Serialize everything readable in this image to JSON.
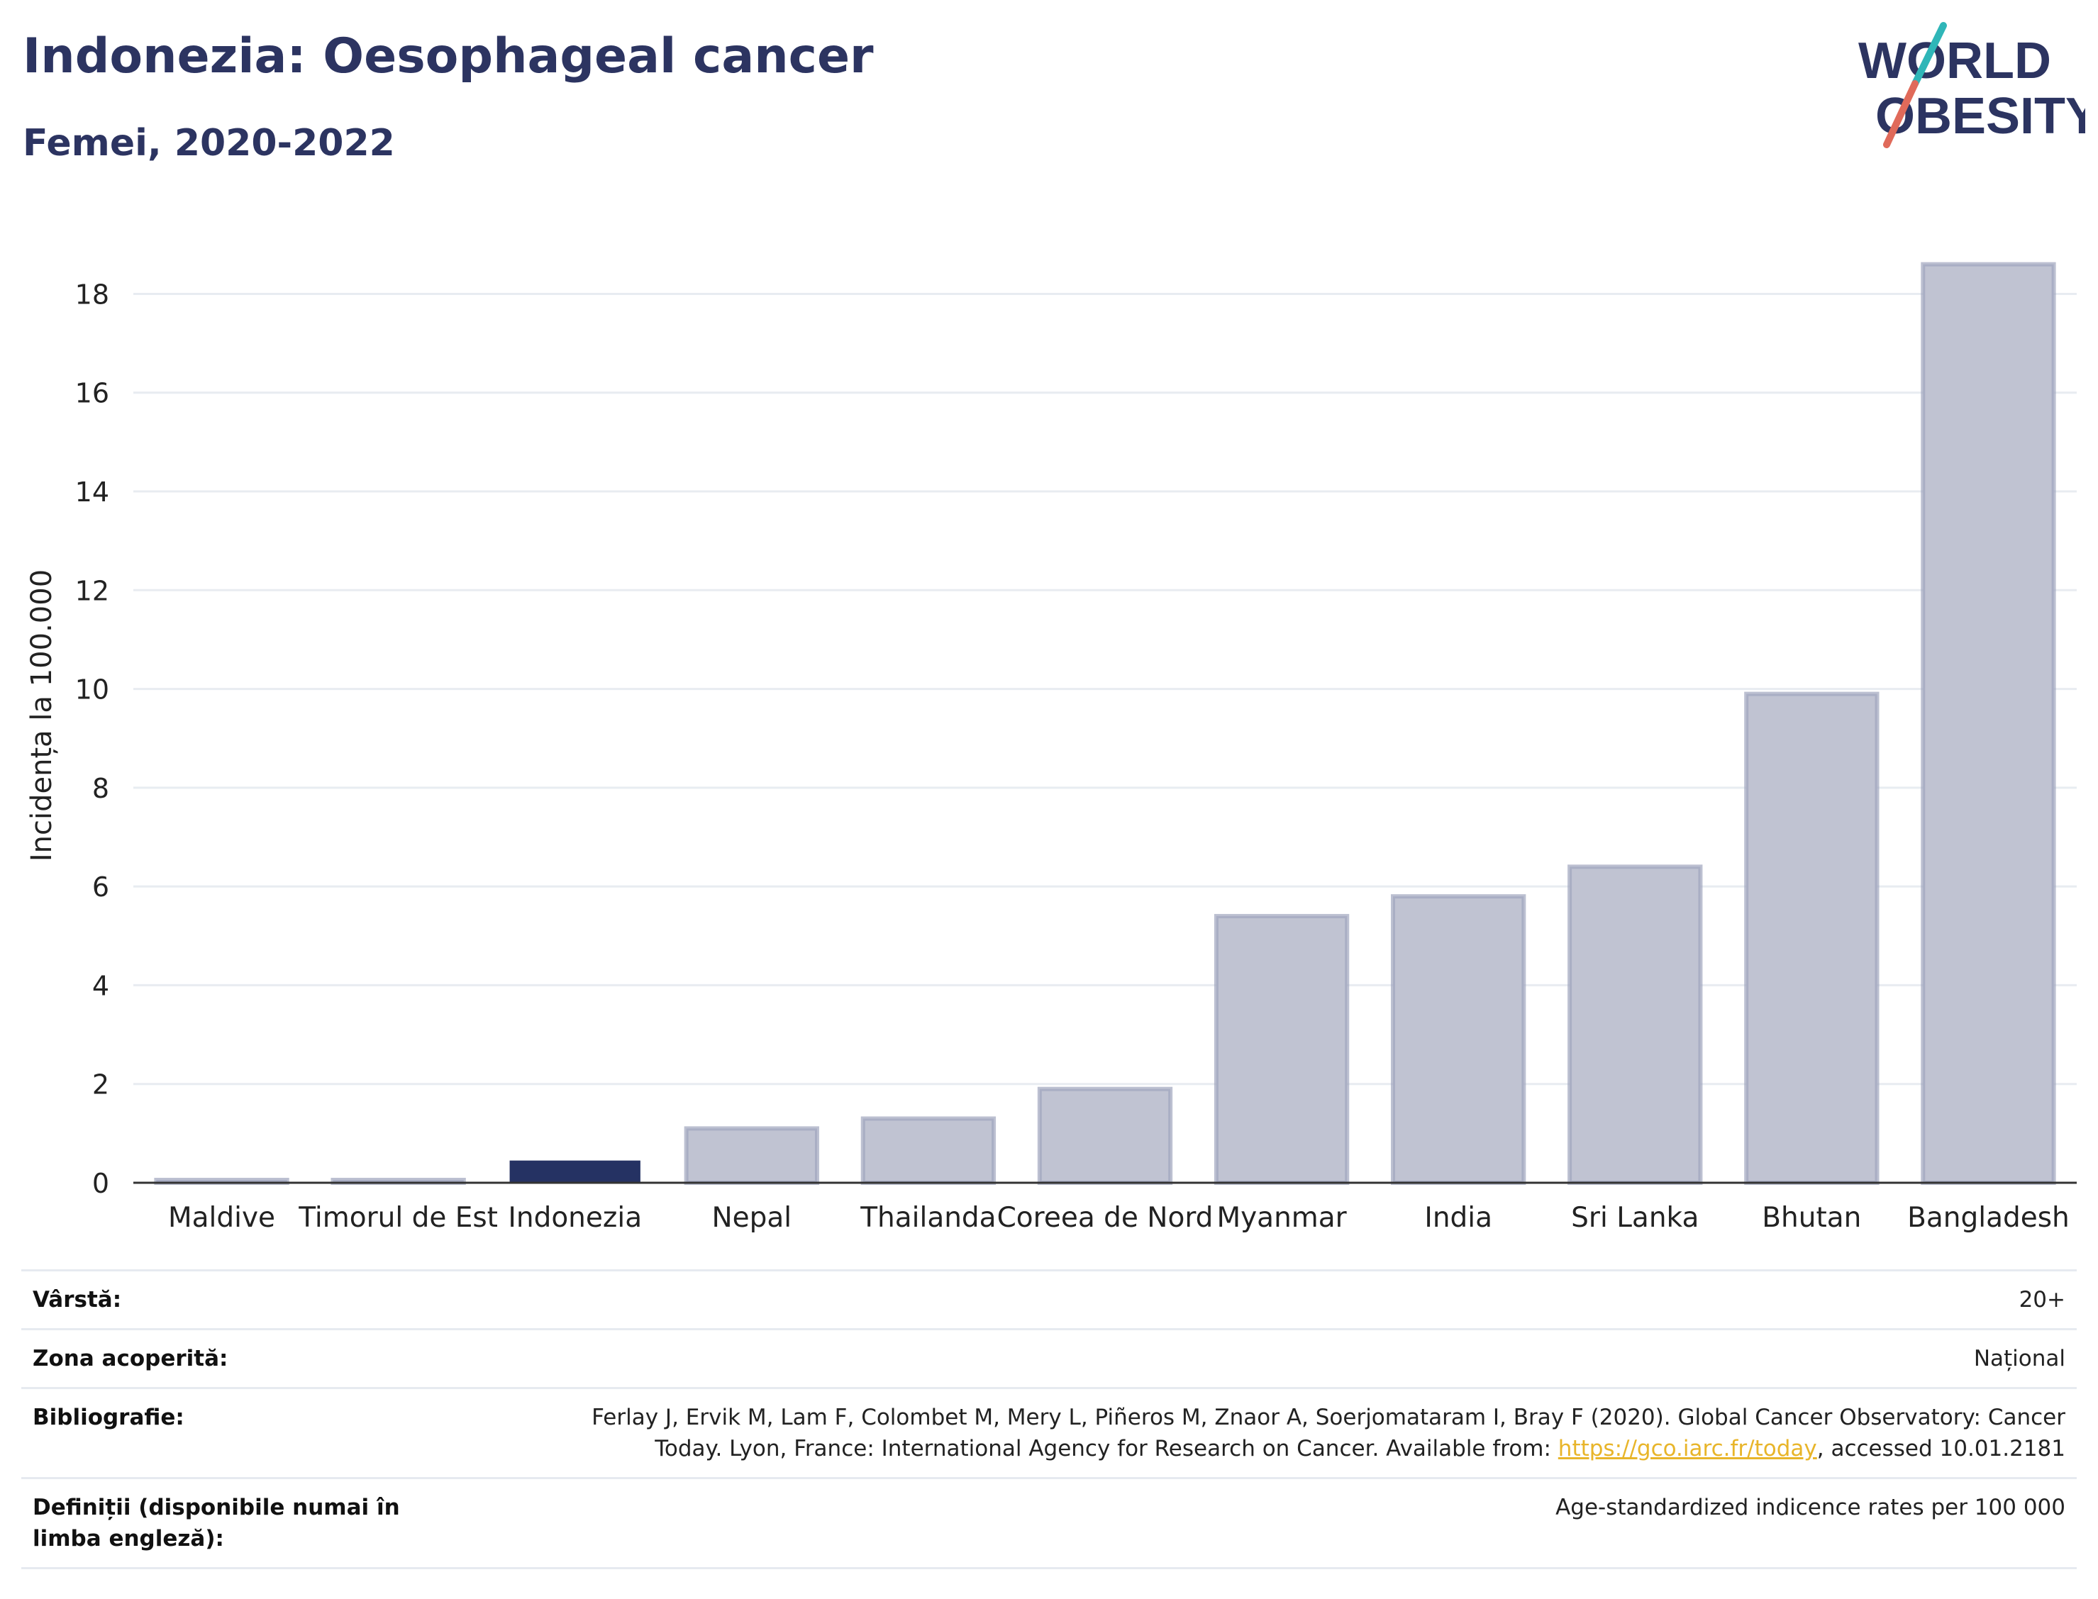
{
  "header": {
    "title": "Indonezia: Oesophageal cancer",
    "subtitle": "Femei, 2020-2022"
  },
  "logo": {
    "line1": "WORLD",
    "line2": "OBESITY",
    "icon": "world-obesity-logo"
  },
  "chart_data": {
    "type": "bar",
    "categories": [
      "Maldive",
      "Timorul de Est",
      "Indonezia",
      "Nepal",
      "Thailanda",
      "Coreea de Nord",
      "Myanmar",
      "India",
      "Sri Lanka",
      "Bhutan",
      "Bangladesh"
    ],
    "values": [
      0.05,
      0.05,
      0.45,
      1.1,
      1.3,
      1.9,
      5.4,
      5.8,
      6.4,
      9.9,
      18.6
    ],
    "highlight": "Indonezia",
    "ylabel": "Incidența la 100.000",
    "ylim": [
      0,
      19.5
    ],
    "yticks": [
      0,
      2,
      4,
      6,
      8,
      10,
      12,
      14,
      16,
      18
    ],
    "grid": true,
    "colors": {
      "bar": "#c0c3d2",
      "bar_edge": "#9fa5bd",
      "highlight": "#253263",
      "grid": "#e8ecf1",
      "axis": "#333333"
    }
  },
  "info": {
    "age_label": "Vârstă:",
    "age_value": "20+",
    "coverage_label": "Zona acoperită:",
    "coverage_value": "Național",
    "bibliography_label": "Bibliografie:",
    "bibliography_line1": "Ferlay J, Ervik M, Lam F, Colombet M, Mery L, Piñeros M, Znaor A, Soerjomataram I, Bray F (2020). Global Cancer Observatory: Cancer",
    "bibliography_line2_pre": "Today. Lyon, France: International Agency for Research on Cancer. Available from: ",
    "bibliography_link": "https://gco.iarc.fr/today",
    "bibliography_line2_post": ", accessed 10.01.2181",
    "definitions_label": "Definiții (disponibile numai în limba engleză):",
    "definitions_value": "Age-standardized indicence rates per 100 000"
  }
}
